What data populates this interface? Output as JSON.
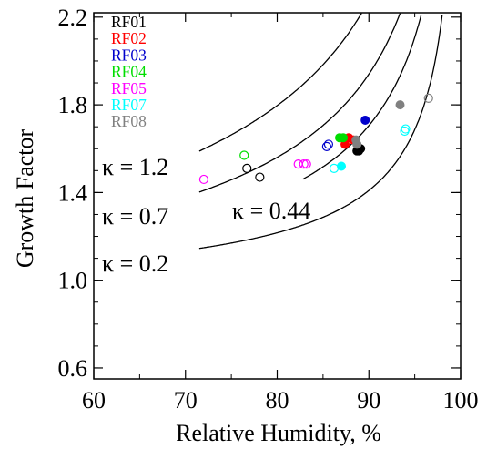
{
  "chart_data": {
    "type": "scatter",
    "title": "",
    "xlabel": "Relative Humidity, %",
    "ylabel": "Growth Factor",
    "xlim": [
      60,
      100
    ],
    "ylim": [
      0.55,
      2.22
    ],
    "x_ticks": [
      60,
      70,
      80,
      90,
      100
    ],
    "y_ticks": [
      0.6,
      1.0,
      1.4,
      1.8,
      2.2
    ],
    "x_tick_labels": [
      "60",
      "70",
      "80",
      "90",
      "100"
    ],
    "y_tick_labels": [
      "0.6",
      "1.0",
      "1.4",
      "1.8",
      "2.2"
    ],
    "grid": false,
    "legend_position": "top-left",
    "series": [
      {
        "name": "RF01",
        "color": "#000000",
        "open": [
          [
            76.7,
            1.51
          ],
          [
            78.1,
            1.47
          ]
        ],
        "filled": [
          [
            88.7,
            1.59
          ],
          [
            88.9,
            1.59
          ],
          [
            89.1,
            1.6
          ]
        ]
      },
      {
        "name": "RF02",
        "color": "#ff0000",
        "open": [],
        "filled": [
          [
            87.4,
            1.62
          ],
          [
            87.8,
            1.65
          ],
          [
            88.3,
            1.64
          ]
        ]
      },
      {
        "name": "RF03",
        "color": "#0000cc",
        "open": [
          [
            85.6,
            1.62
          ],
          [
            85.4,
            1.61
          ]
        ],
        "filled": [
          [
            89.6,
            1.73
          ]
        ]
      },
      {
        "name": "RF04",
        "color": "#00dd00",
        "open": [
          [
            76.4,
            1.57
          ]
        ],
        "filled": [
          [
            86.8,
            1.65
          ],
          [
            87.2,
            1.65
          ]
        ]
      },
      {
        "name": "RF05",
        "color": "#ff00ff",
        "open": [
          [
            72.0,
            1.46
          ],
          [
            82.3,
            1.53
          ],
          [
            82.9,
            1.53
          ],
          [
            83.2,
            1.53
          ]
        ],
        "filled": []
      },
      {
        "name": "RF07",
        "color": "#00ffff",
        "open": [
          [
            86.2,
            1.51
          ],
          [
            93.9,
            1.68
          ],
          [
            94.0,
            1.69
          ]
        ],
        "filled": [
          [
            87.0,
            1.52
          ]
        ]
      },
      {
        "name": "RF08",
        "color": "#808080",
        "open": [
          [
            96.5,
            1.83
          ]
        ],
        "filled": [
          [
            93.4,
            1.8
          ],
          [
            88.7,
            1.62
          ],
          [
            88.6,
            1.64
          ]
        ]
      }
    ],
    "kappa_curves": [
      {
        "kappa": 1.2,
        "label": "κ = 1.2"
      },
      {
        "kappa": 0.7,
        "label": "κ = 0.7"
      },
      {
        "kappa": 0.44,
        "label": "κ = 0.44"
      },
      {
        "kappa": 0.2,
        "label": "κ = 0.2"
      }
    ]
  }
}
